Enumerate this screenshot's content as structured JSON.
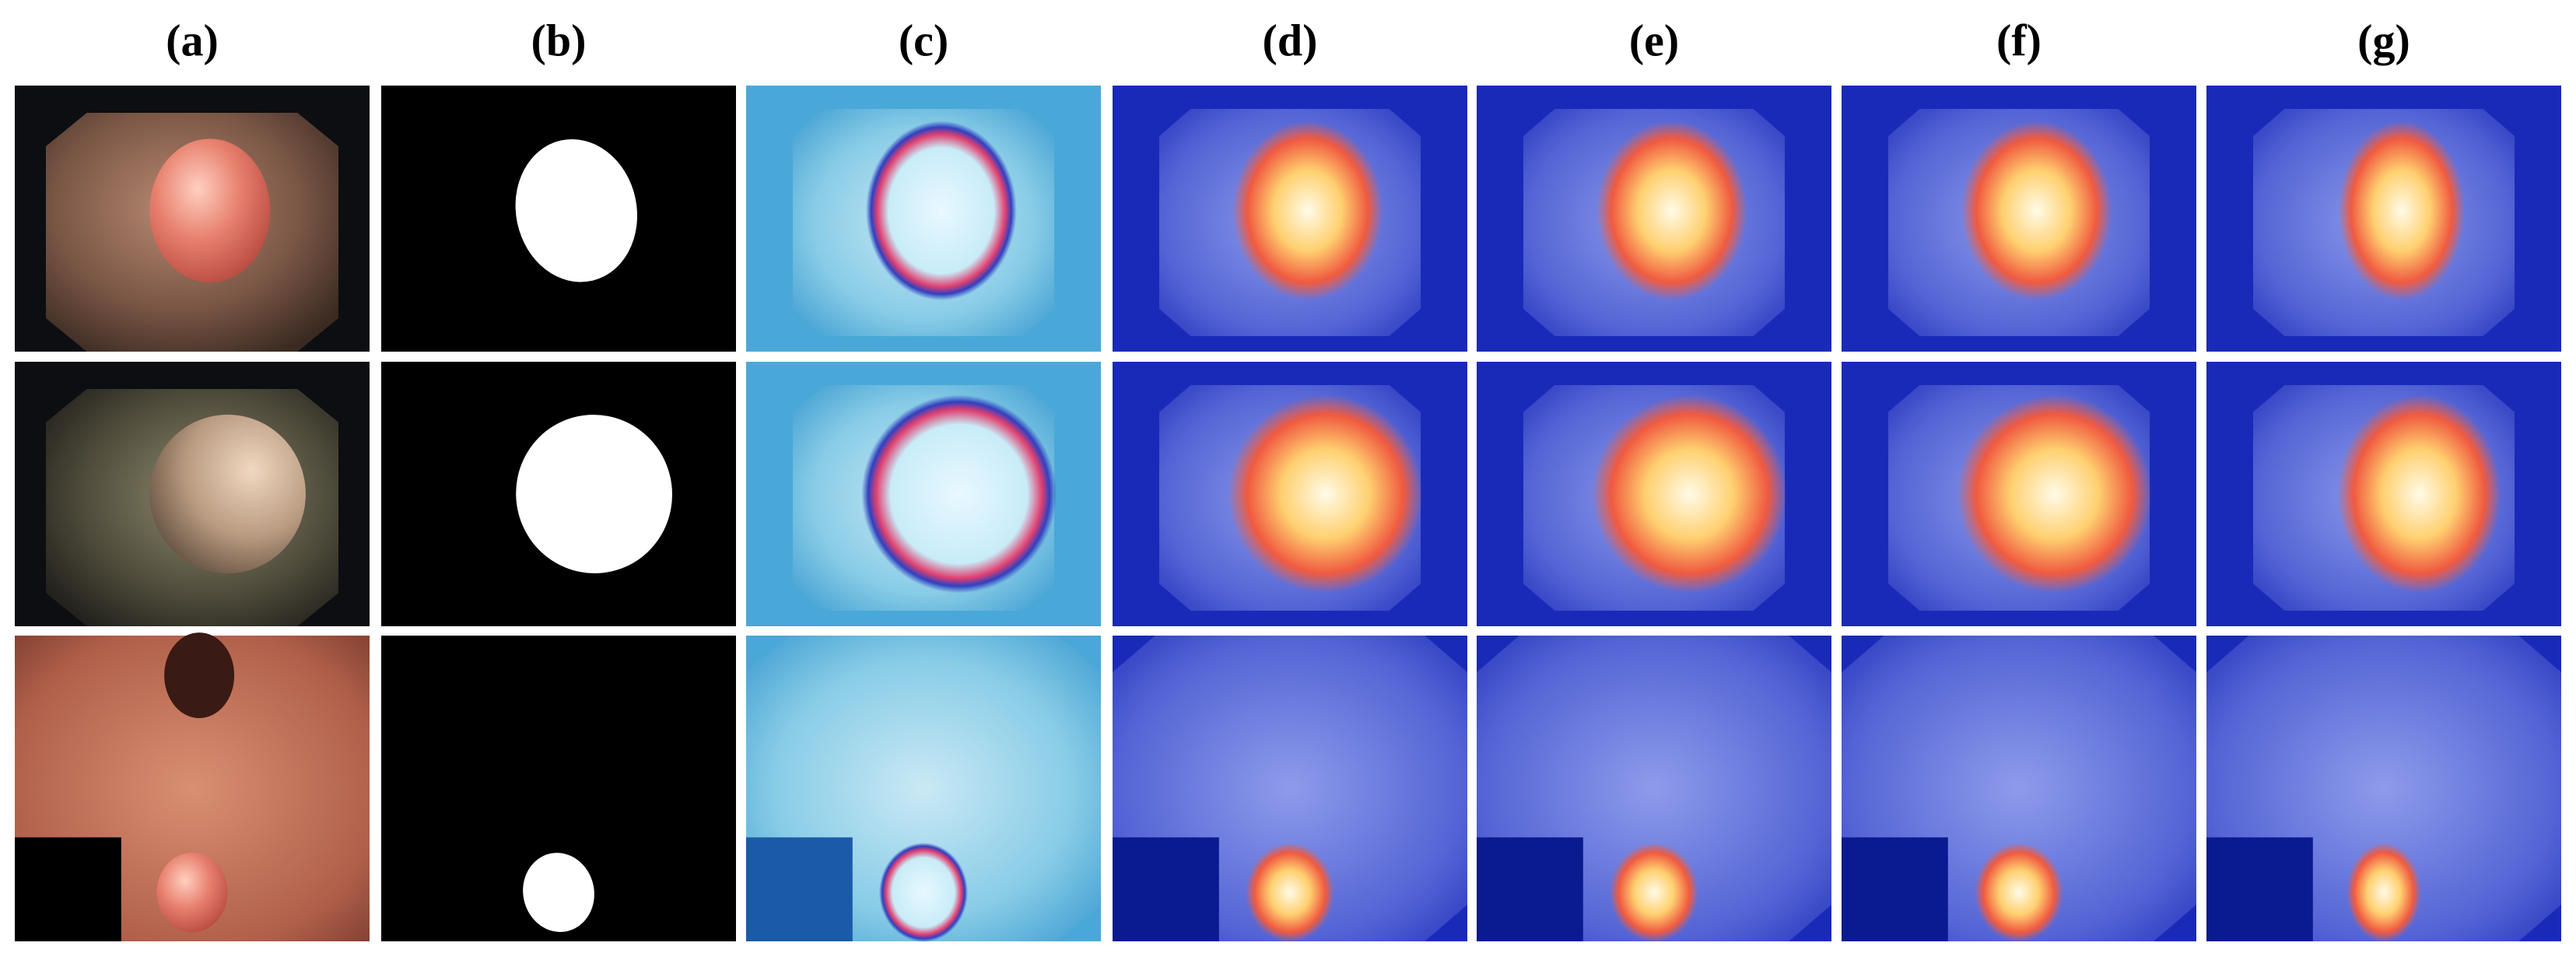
{
  "figure": {
    "columns": [
      "(a)",
      "(b)",
      "(c)",
      "(d)",
      "(e)",
      "(f)",
      "(g)"
    ]
  }
}
